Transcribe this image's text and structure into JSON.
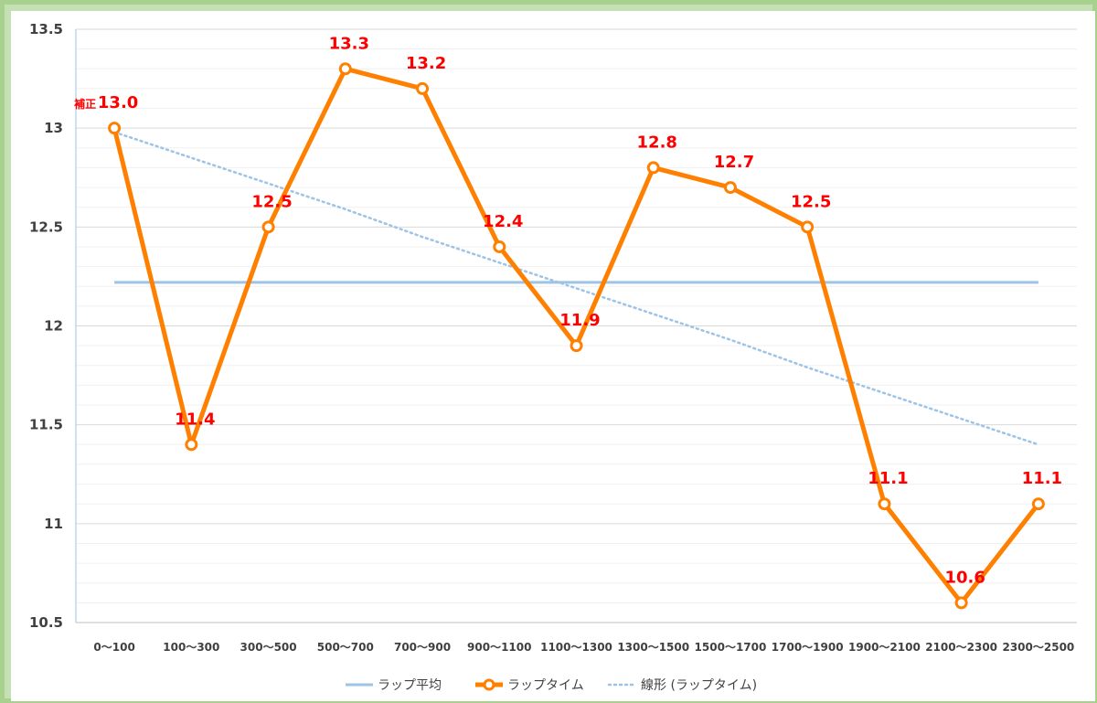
{
  "chart_data": {
    "type": "line",
    "categories": [
      "0～100",
      "100～300",
      "300～500",
      "500～700",
      "700～900",
      "900～1100",
      "1100～1300",
      "1300～1500",
      "1500～1700",
      "1700～1900",
      "1900～2100",
      "2100～2300",
      "2300～2500"
    ],
    "series": [
      {
        "name": "ラップ平均",
        "kind": "constant",
        "values": [
          12.22,
          12.22,
          12.22,
          12.22,
          12.22,
          12.22,
          12.22,
          12.22,
          12.22,
          12.22,
          12.22,
          12.22,
          12.22
        ],
        "color": "#9dc3e6"
      },
      {
        "name": "ラップタイム",
        "kind": "line-markers",
        "values": [
          13.0,
          11.4,
          12.5,
          13.3,
          13.2,
          12.4,
          11.9,
          12.8,
          12.7,
          12.5,
          11.1,
          10.6,
          11.1
        ],
        "data_labels": [
          "13.0",
          "11.4",
          "12.5",
          "13.3",
          "13.2",
          "12.4",
          "11.9",
          "12.8",
          "12.7",
          "12.5",
          "11.1",
          "10.6",
          "11.1"
        ],
        "color": "#ff8000"
      },
      {
        "name": "線形 (ラップタイム)",
        "kind": "trendline",
        "values": [
          12.98,
          12.85,
          12.72,
          12.59,
          12.45,
          12.32,
          12.19,
          12.06,
          11.93,
          11.79,
          11.66,
          11.53,
          11.4
        ],
        "color": "#9dc3e6"
      }
    ],
    "annotations": [
      {
        "text": "補正",
        "category_index": 0
      }
    ],
    "yticks": [
      "10.5",
      "11",
      "11.5",
      "12",
      "12.5",
      "13",
      "13.5"
    ],
    "ylim": [
      10.5,
      13.5
    ],
    "minor_step": 0.1,
    "grid": true,
    "legend_position": "bottom",
    "label_color": "#ff0000"
  }
}
